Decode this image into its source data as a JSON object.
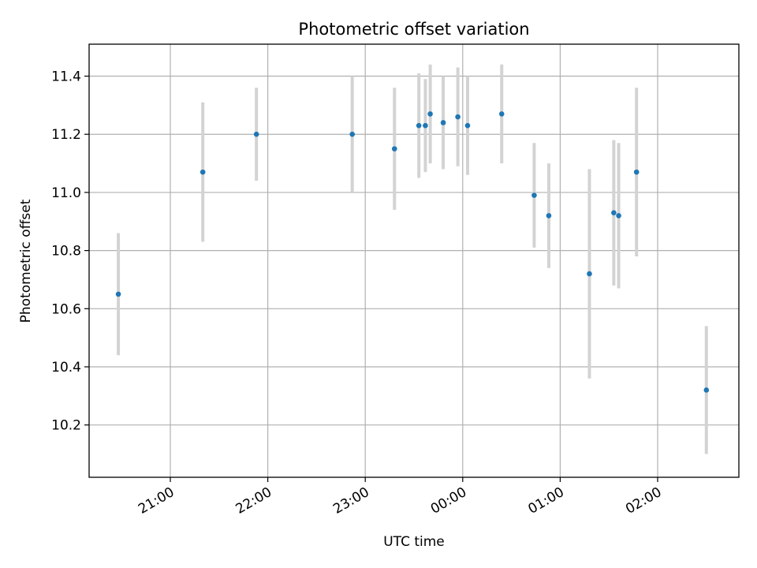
{
  "chart_data": {
    "type": "scatter",
    "title": "Photometric offset variation",
    "xlabel": "UTC time",
    "ylabel": "Photometric offset",
    "x_axis_kind": "time",
    "x_tick_labels": [
      "21:00",
      "22:00",
      "23:00",
      "00:00",
      "01:00",
      "02:00"
    ],
    "y_tick_values": [
      10.2,
      10.4,
      10.6,
      10.8,
      11.0,
      11.2,
      11.4
    ],
    "y_tick_labels": [
      "10.2",
      "10.4",
      "10.6",
      "10.8",
      "11.0",
      "11.2",
      "11.4"
    ],
    "xlim": [
      "20:10",
      "02:50"
    ],
    "ylim": [
      10.02,
      11.51
    ],
    "grid": true,
    "marker_color": "#1f77b4",
    "errorbar_color": "#d3d3d3",
    "series": [
      {
        "points": [
          {
            "x": "20:28",
            "y": 10.65,
            "err": 0.21
          },
          {
            "x": "21:20",
            "y": 11.07,
            "err": 0.24
          },
          {
            "x": "21:53",
            "y": 11.2,
            "err": 0.16
          },
          {
            "x": "22:52",
            "y": 11.2,
            "err": 0.2
          },
          {
            "x": "23:18",
            "y": 11.15,
            "err": 0.21
          },
          {
            "x": "23:33",
            "y": 11.23,
            "err": 0.18
          },
          {
            "x": "23:37",
            "y": 11.23,
            "err": 0.16
          },
          {
            "x": "23:40",
            "y": 11.27,
            "err": 0.17
          },
          {
            "x": "23:48",
            "y": 11.24,
            "err": 0.16
          },
          {
            "x": "23:57",
            "y": 11.26,
            "err": 0.17
          },
          {
            "x": "00:03",
            "y": 11.23,
            "err": 0.17
          },
          {
            "x": "00:24",
            "y": 11.27,
            "err": 0.17
          },
          {
            "x": "00:44",
            "y": 10.99,
            "err": 0.18
          },
          {
            "x": "00:53",
            "y": 10.92,
            "err": 0.18
          },
          {
            "x": "01:18",
            "y": 10.72,
            "err": 0.36
          },
          {
            "x": "01:33",
            "y": 10.93,
            "err": 0.25
          },
          {
            "x": "01:36",
            "y": 10.92,
            "err": 0.25
          },
          {
            "x": "01:47",
            "y": 11.07,
            "err": 0.29
          },
          {
            "x": "02:30",
            "y": 10.32,
            "err": 0.22
          }
        ]
      }
    ]
  }
}
